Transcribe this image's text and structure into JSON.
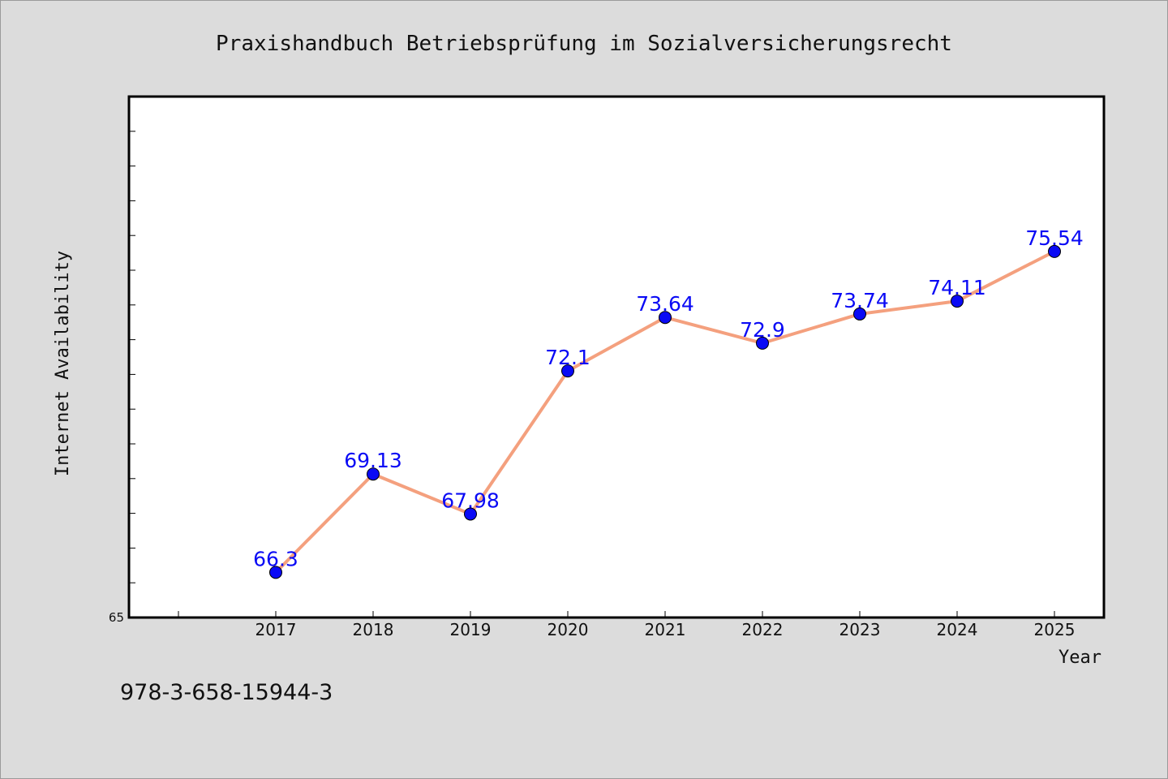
{
  "chart_data": {
    "type": "line",
    "title": "Praxishandbuch Betriebsprüfung im Sozialversicherungsrecht",
    "xlabel": "Year",
    "ylabel": "Internet Availability",
    "x": [
      "2017",
      "2018",
      "2019",
      "2020",
      "2021",
      "2022",
      "2023",
      "2024",
      "2025"
    ],
    "values": [
      66.3,
      69.13,
      67.98,
      72.1,
      73.64,
      72.9,
      73.74,
      74.11,
      75.54
    ],
    "data_labels": [
      "66.3",
      "69.13",
      "67.98",
      "72.1",
      "73.64",
      "72.9",
      "73.74",
      "74.11",
      "75.54"
    ],
    "ylim": [
      65,
      80
    ],
    "y_tick_labels": [
      "65"
    ],
    "grid": false,
    "legend": "none",
    "line_color": "#f4a07e",
    "marker_color": "#0a0af5",
    "label_color": "#0a0af5",
    "background_color": "#dcdcdc",
    "plot_background_color": "#ffffff"
  },
  "footer": {
    "isbn": "978-3-658-15944-3"
  }
}
